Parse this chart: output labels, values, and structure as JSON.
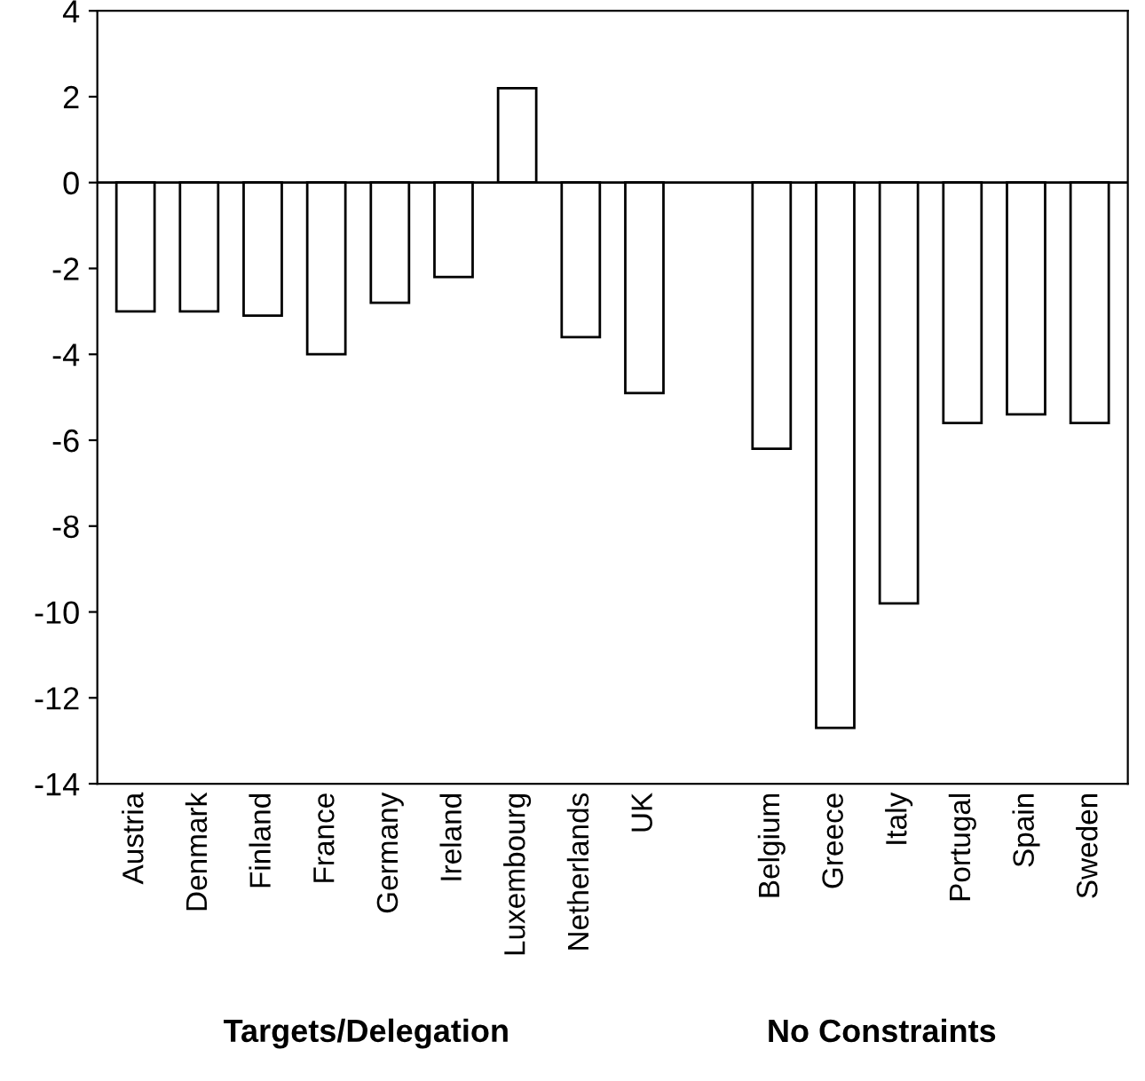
{
  "chart_data": {
    "type": "bar",
    "categories": [
      "Austria",
      "Denmark",
      "Finland",
      "France",
      "Germany",
      "Ireland",
      "Luxembourg",
      "Netherlands",
      "UK",
      null,
      "Belgium",
      "Greece",
      "Italy",
      "Portugal",
      "Spain",
      "Sweden"
    ],
    "values": [
      -3.0,
      -3.0,
      -3.1,
      -4.0,
      -2.8,
      -2.2,
      2.2,
      -3.6,
      -4.9,
      null,
      -6.2,
      -12.7,
      -9.8,
      -5.6,
      -5.4,
      -5.6
    ],
    "color": "#ffffff",
    "ylim": [
      -14,
      4
    ],
    "yticks": [
      -14,
      -12,
      -10,
      -8,
      -6,
      -4,
      -2,
      0,
      2,
      4
    ],
    "grid": false,
    "ref_lines": [
      {
        "axis": "y",
        "value": 0,
        "color": "#000000"
      }
    ],
    "annotations": [
      "Targets/Delegation",
      "No Constraints"
    ]
  }
}
